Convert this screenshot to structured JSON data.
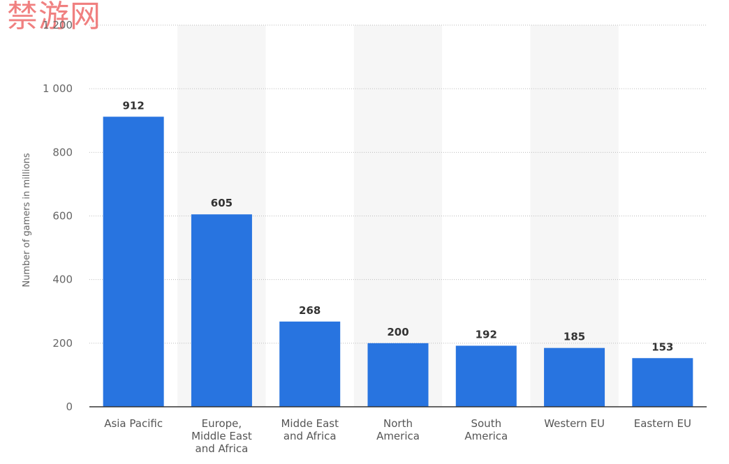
{
  "watermark": "禁游网",
  "chart_data": {
    "type": "bar",
    "title": "",
    "xlabel": "",
    "ylabel": "Number of gamers in millions",
    "ylim": [
      0,
      1200
    ],
    "yticks": [
      0,
      200,
      400,
      600,
      800,
      1000,
      1200
    ],
    "ytick_labels": [
      "0",
      "200",
      "400",
      "600",
      "800",
      "1 000",
      "1 200"
    ],
    "grid": true,
    "categories": [
      [
        "Asia Pacific"
      ],
      [
        "Europe,",
        "Middle East",
        "and Africa"
      ],
      [
        "Midde East",
        "and Africa"
      ],
      [
        "North",
        "America"
      ],
      [
        "South",
        "America"
      ],
      [
        "Western EU"
      ],
      [
        "Eastern EU"
      ]
    ],
    "values": [
      912,
      605,
      268,
      200,
      192,
      185,
      153
    ],
    "value_labels": [
      "912",
      "605",
      "268",
      "200",
      "192",
      "185",
      "153"
    ],
    "colors": {
      "bar": "#2874e0",
      "grid": "#bbbbbb",
      "baseline": "#333333",
      "band": "#f6f6f6"
    }
  }
}
